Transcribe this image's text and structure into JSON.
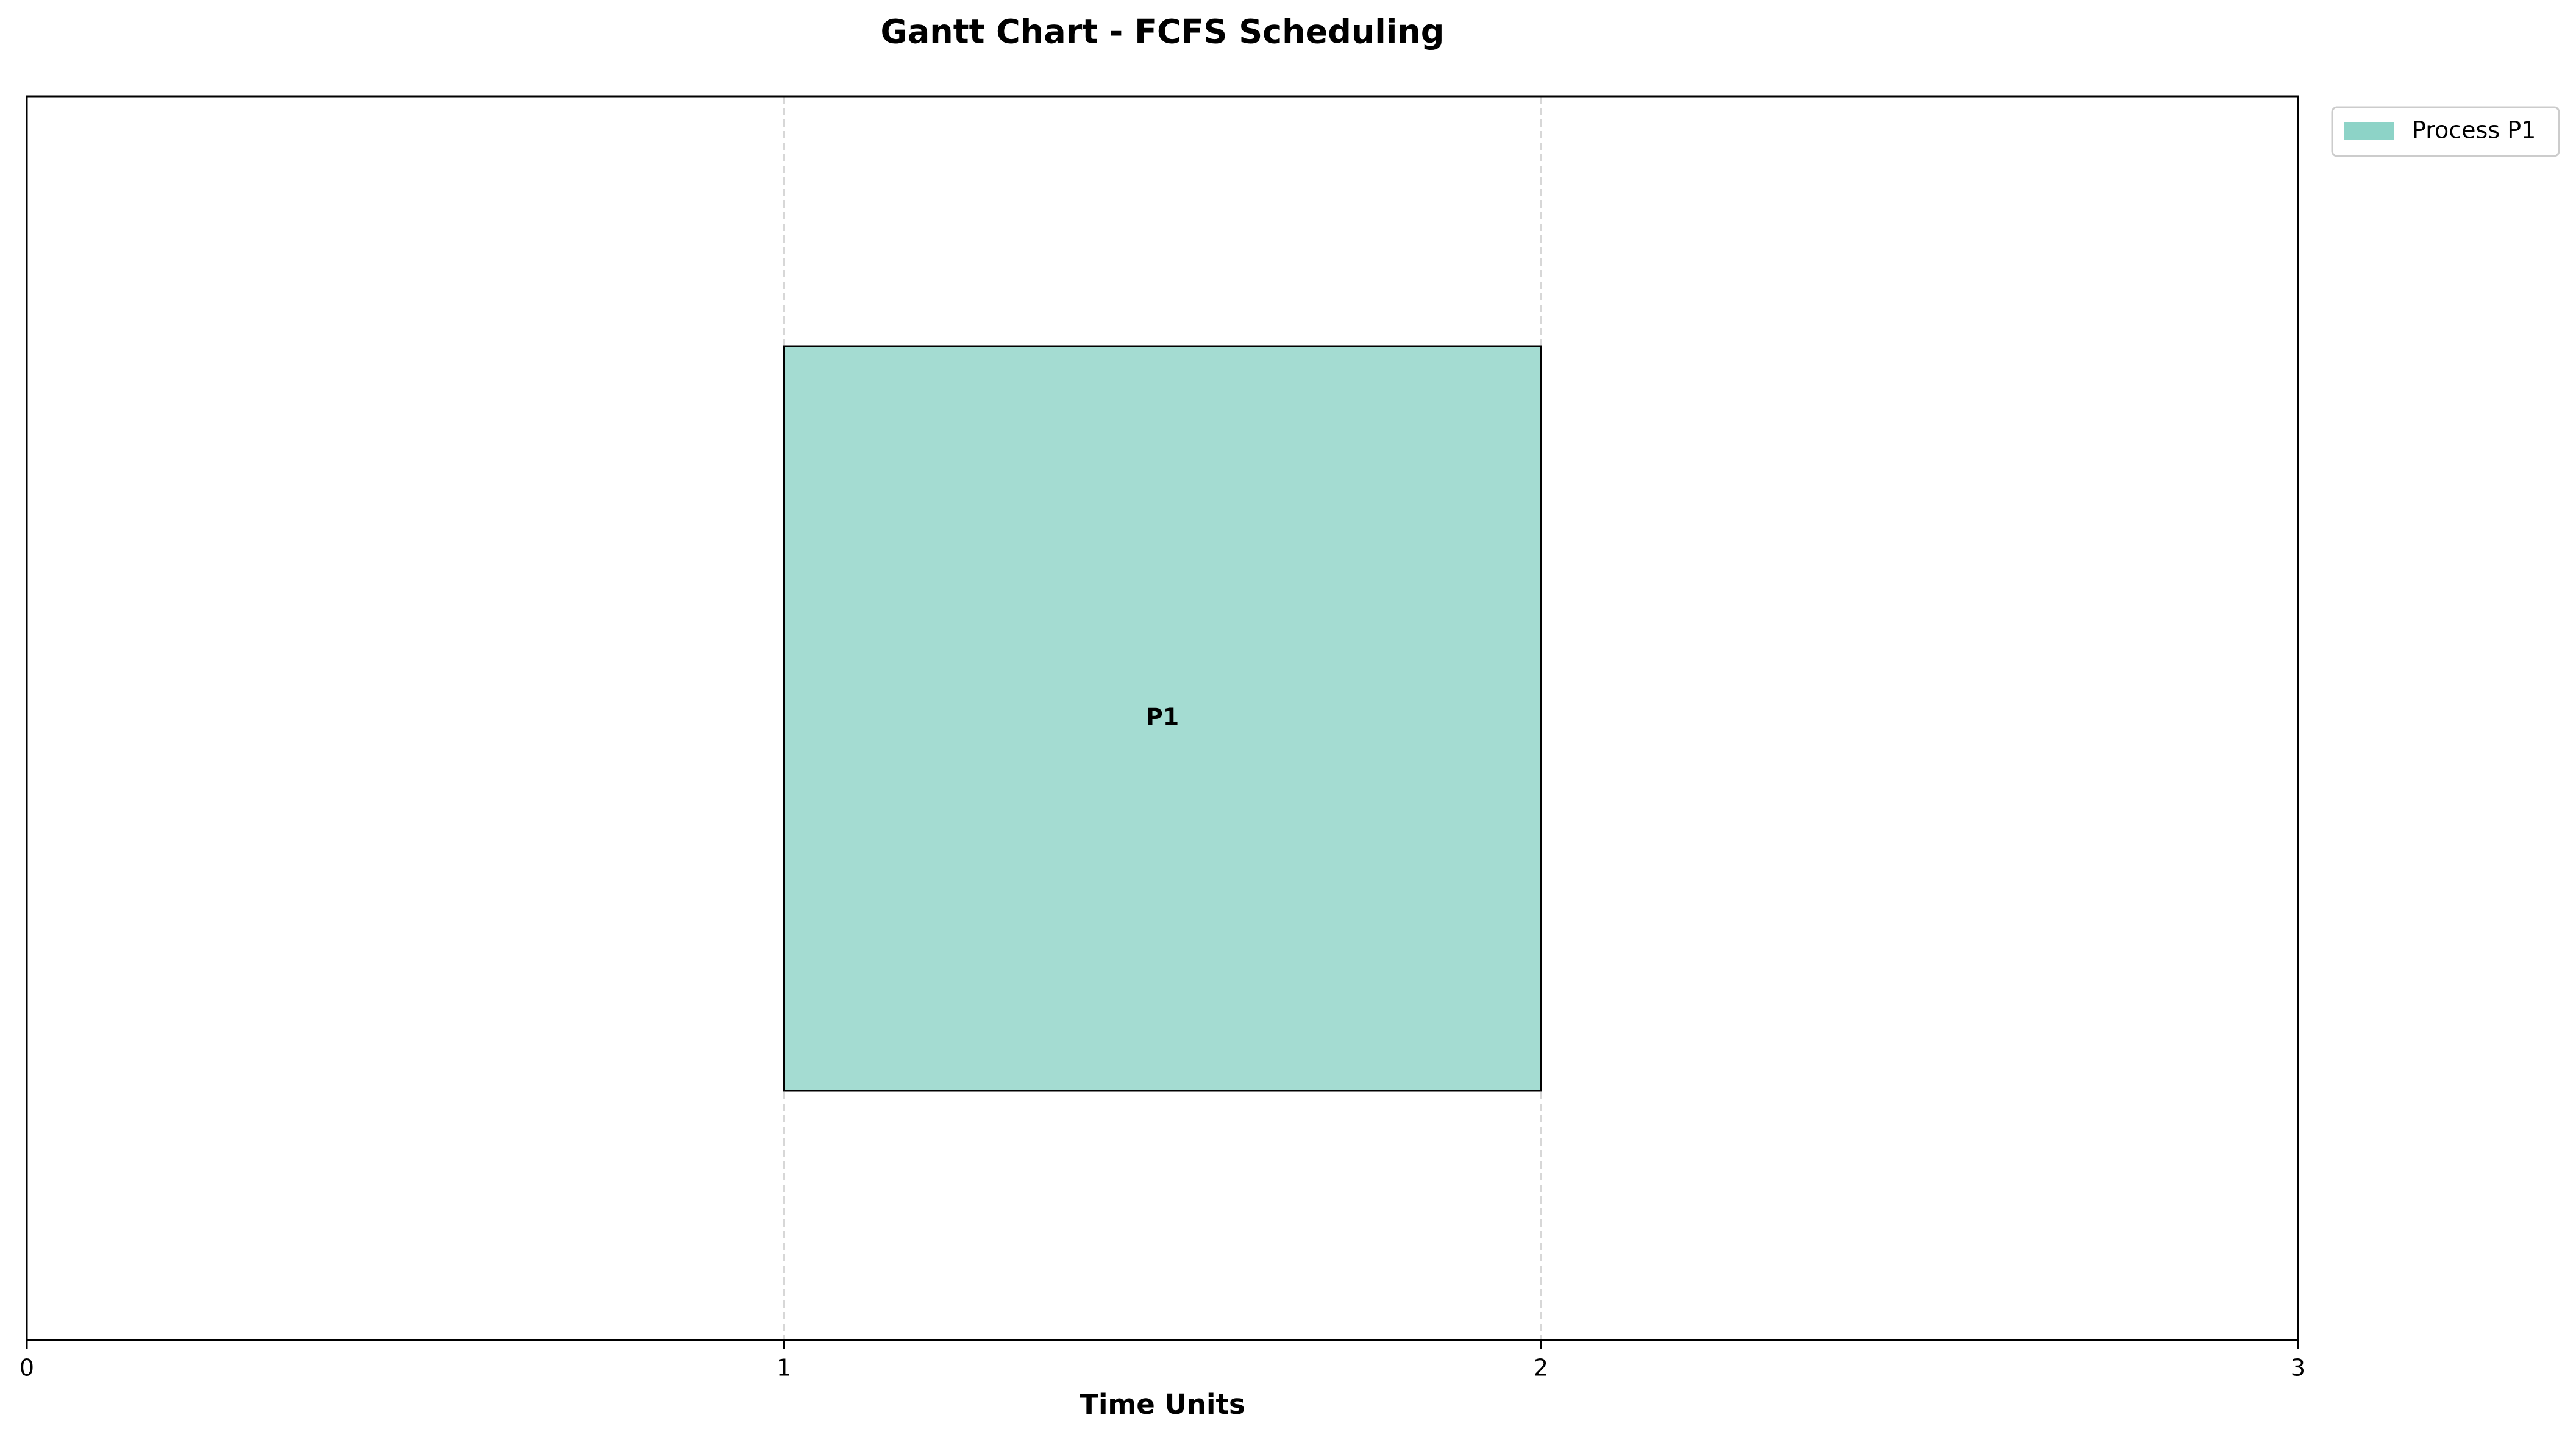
{
  "chart_data": {
    "type": "gantt",
    "title": "Gantt Chart - FCFS Scheduling",
    "xlabel": "Time Units",
    "ylabel": "",
    "xlim": [
      0,
      3
    ],
    "xticks": [
      0,
      1,
      2,
      3
    ],
    "grid": "vertical dashed at ticks",
    "legend_position": "outside-top-right",
    "series": [
      {
        "name": "Process P1",
        "label": "P1",
        "start": 1,
        "end": 2,
        "color": "#8dd3c7"
      }
    ]
  }
}
